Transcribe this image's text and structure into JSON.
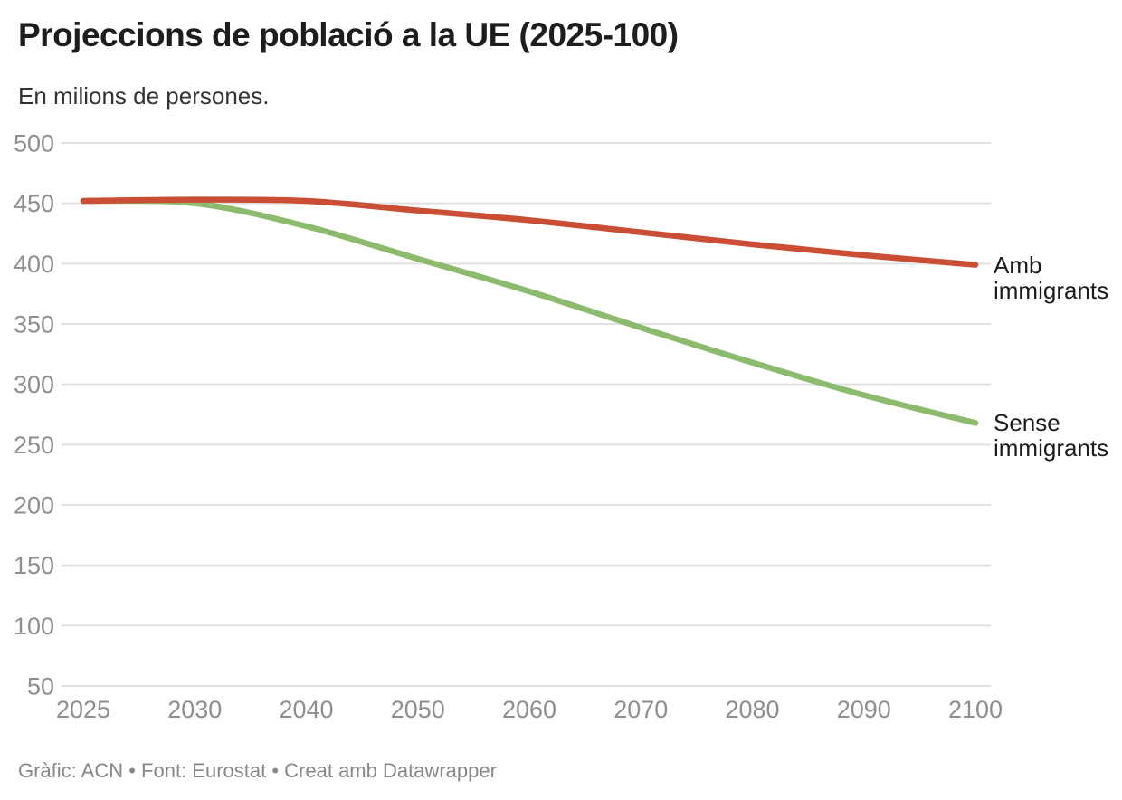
{
  "chart_data": {
    "type": "line",
    "title": "Projeccions de població a la UE (2025-100)",
    "subtitle": "En milions de persones.",
    "x": [
      2025,
      2030,
      2040,
      2050,
      2060,
      2070,
      2080,
      2090,
      2100
    ],
    "x_tick_labels": [
      "2025",
      "2030",
      "2040",
      "2050",
      "2060",
      "2070",
      "2080",
      "2090",
      "2100"
    ],
    "x_spacing": "even",
    "series": [
      {
        "name": "Amb immigrants",
        "color": "#c94e34",
        "values": [
          452,
          453,
          452,
          444,
          436,
          426,
          416,
          407,
          399
        ]
      },
      {
        "name": "Sense immigrants",
        "color": "#8cbb6d",
        "values": [
          452,
          450,
          431,
          404,
          377,
          347,
          318,
          291,
          268
        ]
      }
    ],
    "ylim": [
      50,
      500
    ],
    "yticks": [
      50,
      100,
      150,
      200,
      250,
      300,
      350,
      400,
      450,
      500
    ],
    "grid": true,
    "grid_color": "#e0e0e0",
    "tick_label_color": "#8e8e8e",
    "legend_position": "line-end-labels-right",
    "unit": "milions de persones"
  },
  "footer": {
    "text": "Gràfic: ACN • Font: Eurostat • Creat amb Datawrapper"
  }
}
